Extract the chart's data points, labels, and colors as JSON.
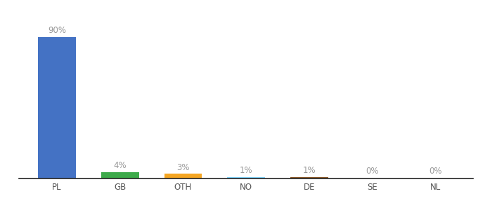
{
  "categories": [
    "PL",
    "GB",
    "OTH",
    "NO",
    "DE",
    "SE",
    "NL"
  ],
  "values": [
    90,
    4,
    3,
    1,
    1,
    0,
    0
  ],
  "bar_colors": [
    "#4472C4",
    "#3DAA4A",
    "#F5A623",
    "#81D4FA",
    "#8B5A2B",
    "#cccccc",
    "#cccccc"
  ],
  "labels": [
    "90%",
    "4%",
    "3%",
    "1%",
    "1%",
    "0%",
    "0%"
  ],
  "ylim": [
    0,
    100
  ],
  "background_color": "#ffffff",
  "label_color": "#999999",
  "label_fontsize": 8.5,
  "tick_fontsize": 8.5,
  "axis_line_color": "#222222",
  "bar_width": 0.6
}
